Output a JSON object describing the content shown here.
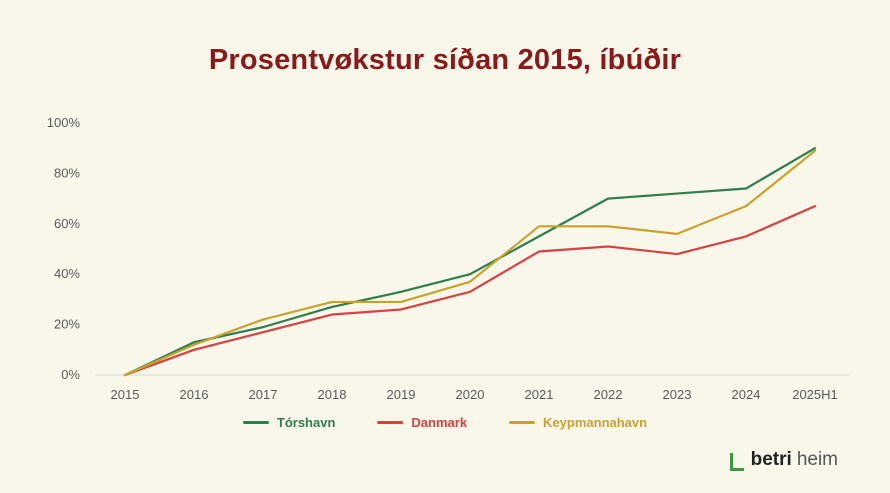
{
  "title": "Prosentvøkstur síðan 2015, íbúðir",
  "chart_data": {
    "type": "line",
    "title": "Prosentvøkstur síðan 2015, íbúðir",
    "categories": [
      "2015",
      "2016",
      "2017",
      "2018",
      "2019",
      "2020",
      "2021",
      "2022",
      "2023",
      "2024",
      "2025H1"
    ],
    "series": [
      {
        "name": "Tórshavn",
        "color": "#2e7d4e",
        "values": [
          0,
          13,
          19,
          27,
          33,
          40,
          55,
          70,
          72,
          74,
          90
        ]
      },
      {
        "name": "Danmark",
        "color": "#d9403f",
        "values": [
          0,
          10,
          17,
          24,
          26,
          33,
          49,
          51,
          48,
          55,
          67
        ]
      },
      {
        "name": "Keypmannahavn",
        "color": "#c9a22b",
        "values": [
          0,
          12,
          22,
          29,
          29,
          37,
          59,
          59,
          56,
          67,
          89
        ]
      }
    ],
    "ylim": [
      0,
      100
    ],
    "yticks": [
      "0%",
      "20%",
      "40%",
      "60%",
      "80%",
      "100%"
    ],
    "xlabel": "",
    "ylabel": "",
    "grid": "off",
    "legend_position": "bottom"
  },
  "colors": {
    "background": "#f9f7ea",
    "title": "#8a1a1a",
    "axis_line": "#ddd9c8",
    "tick_label": "#5a5a5a",
    "logo_green": "#3c9a47"
  },
  "logo": {
    "bold": "betri",
    "light": "heim"
  }
}
